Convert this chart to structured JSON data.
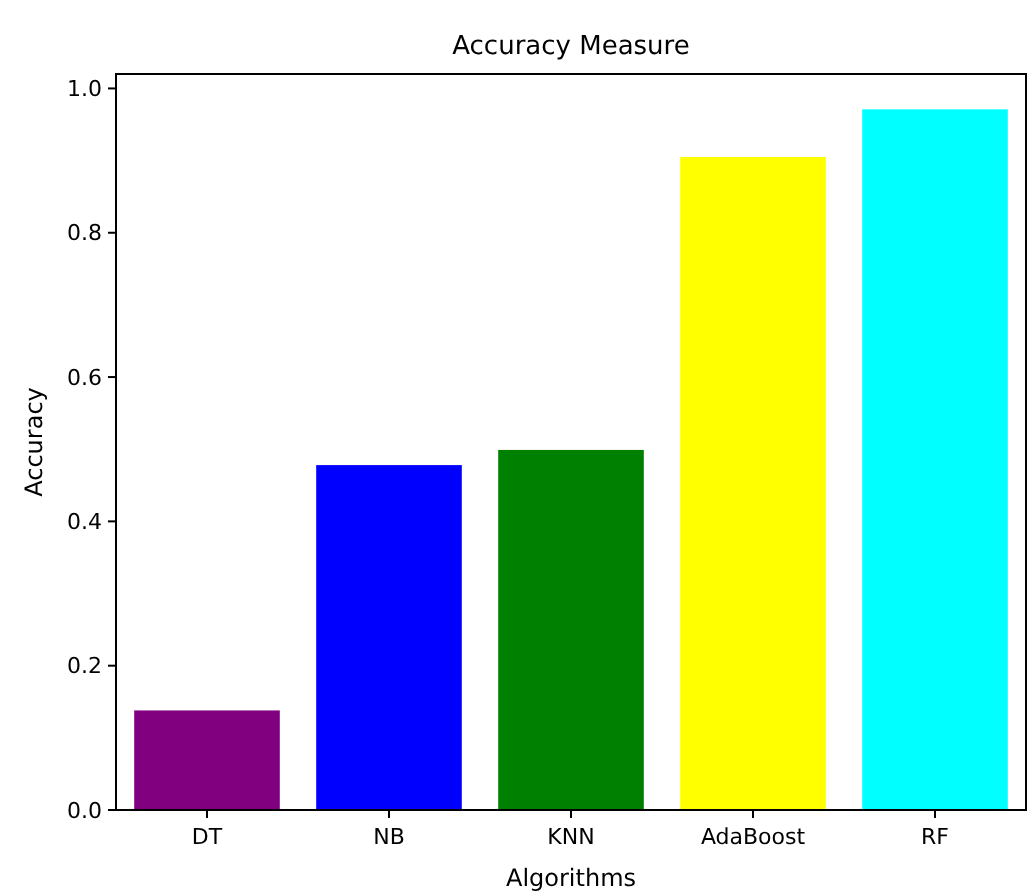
{
  "chart_data": {
    "type": "bar",
    "title": "Accuracy Measure",
    "xlabel": "Algorithms",
    "ylabel": "Accuracy",
    "categories": [
      "DT",
      "NB",
      "KNN",
      "AdaBoost",
      "RF"
    ],
    "values": [
      0.138,
      0.478,
      0.499,
      0.905,
      0.971
    ],
    "colors": [
      "#800080",
      "#0000ff",
      "#008000",
      "#ffff00",
      "#00ffff"
    ],
    "ylim": [
      0,
      1.02
    ],
    "yticks": [
      {
        "value": 0,
        "label": "0.0"
      },
      {
        "value": 0.2,
        "label": "0.2"
      },
      {
        "value": 0.4,
        "label": "0.4"
      },
      {
        "value": 0.6,
        "label": "0.6"
      },
      {
        "value": 0.8,
        "label": "0.8"
      },
      {
        "value": 1,
        "label": "1.0"
      }
    ]
  }
}
